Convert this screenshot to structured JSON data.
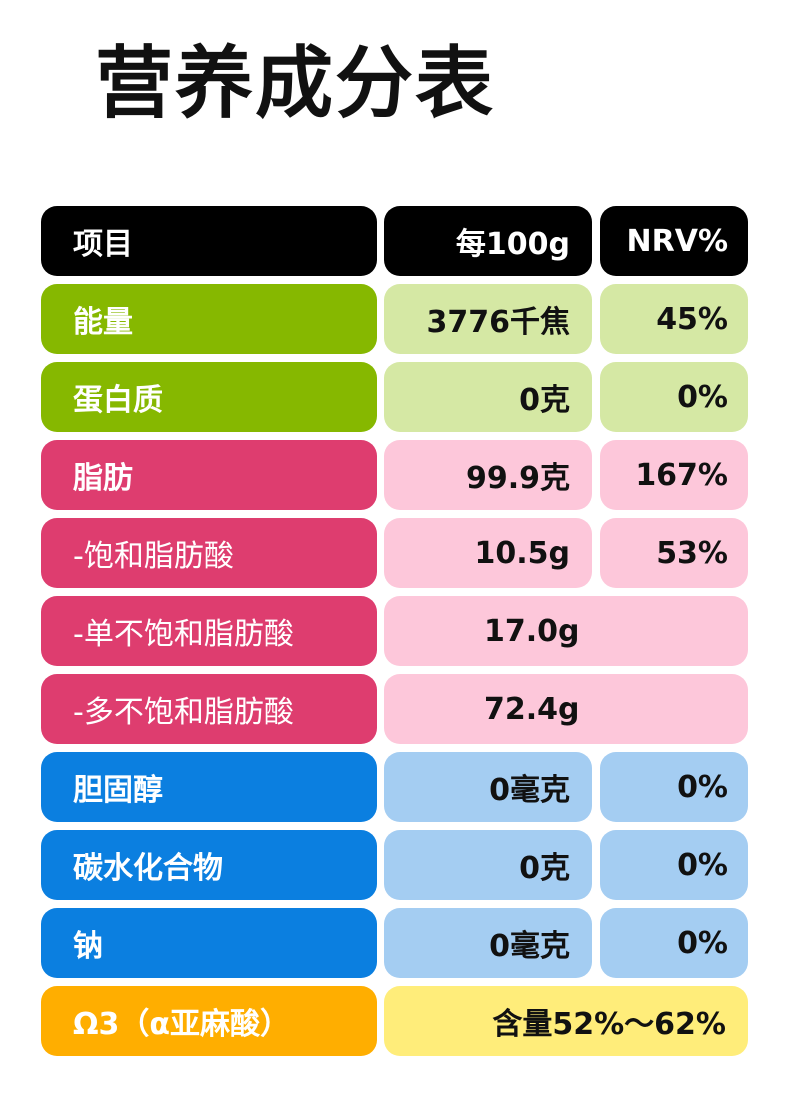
{
  "title": "营养成分表",
  "header": {
    "item": "项目",
    "per100g": "每100g",
    "nrv": "NRV%"
  },
  "rows": [
    {
      "label": "能量",
      "value": "3776千焦",
      "nrv": "45%"
    },
    {
      "label": "蛋白质",
      "value": "0克",
      "nrv": "0%"
    },
    {
      "label": "脂肪",
      "value": "99.9克",
      "nrv": "167%"
    },
    {
      "label": "-饱和脂肪酸",
      "value": "10.5g",
      "nrv": "53%"
    },
    {
      "label": "-单不饱和脂肪酸",
      "value": "17.0g"
    },
    {
      "label": "-多不饱和脂肪酸",
      "value": "72.4g"
    },
    {
      "label": "胆固醇",
      "value": "0毫克",
      "nrv": "0%"
    },
    {
      "label": "碳水化合物",
      "value": "0克",
      "nrv": "0%"
    },
    {
      "label": "钠",
      "value": "0毫克",
      "nrv": "0%"
    },
    {
      "label": "Ω3（α亚麻酸）",
      "value": "含量52%～62%"
    }
  ],
  "colors": {
    "header": "#000000",
    "green_label": "#86b800",
    "green_value": "#d5e8a4",
    "pink_label": "#de3d6f",
    "pink_value": "#fdc7da",
    "blue_label": "#0b7fe0",
    "blue_value": "#a4cdf2",
    "yellow_label": "#ffae00",
    "yellow_value": "#ffed7a"
  }
}
